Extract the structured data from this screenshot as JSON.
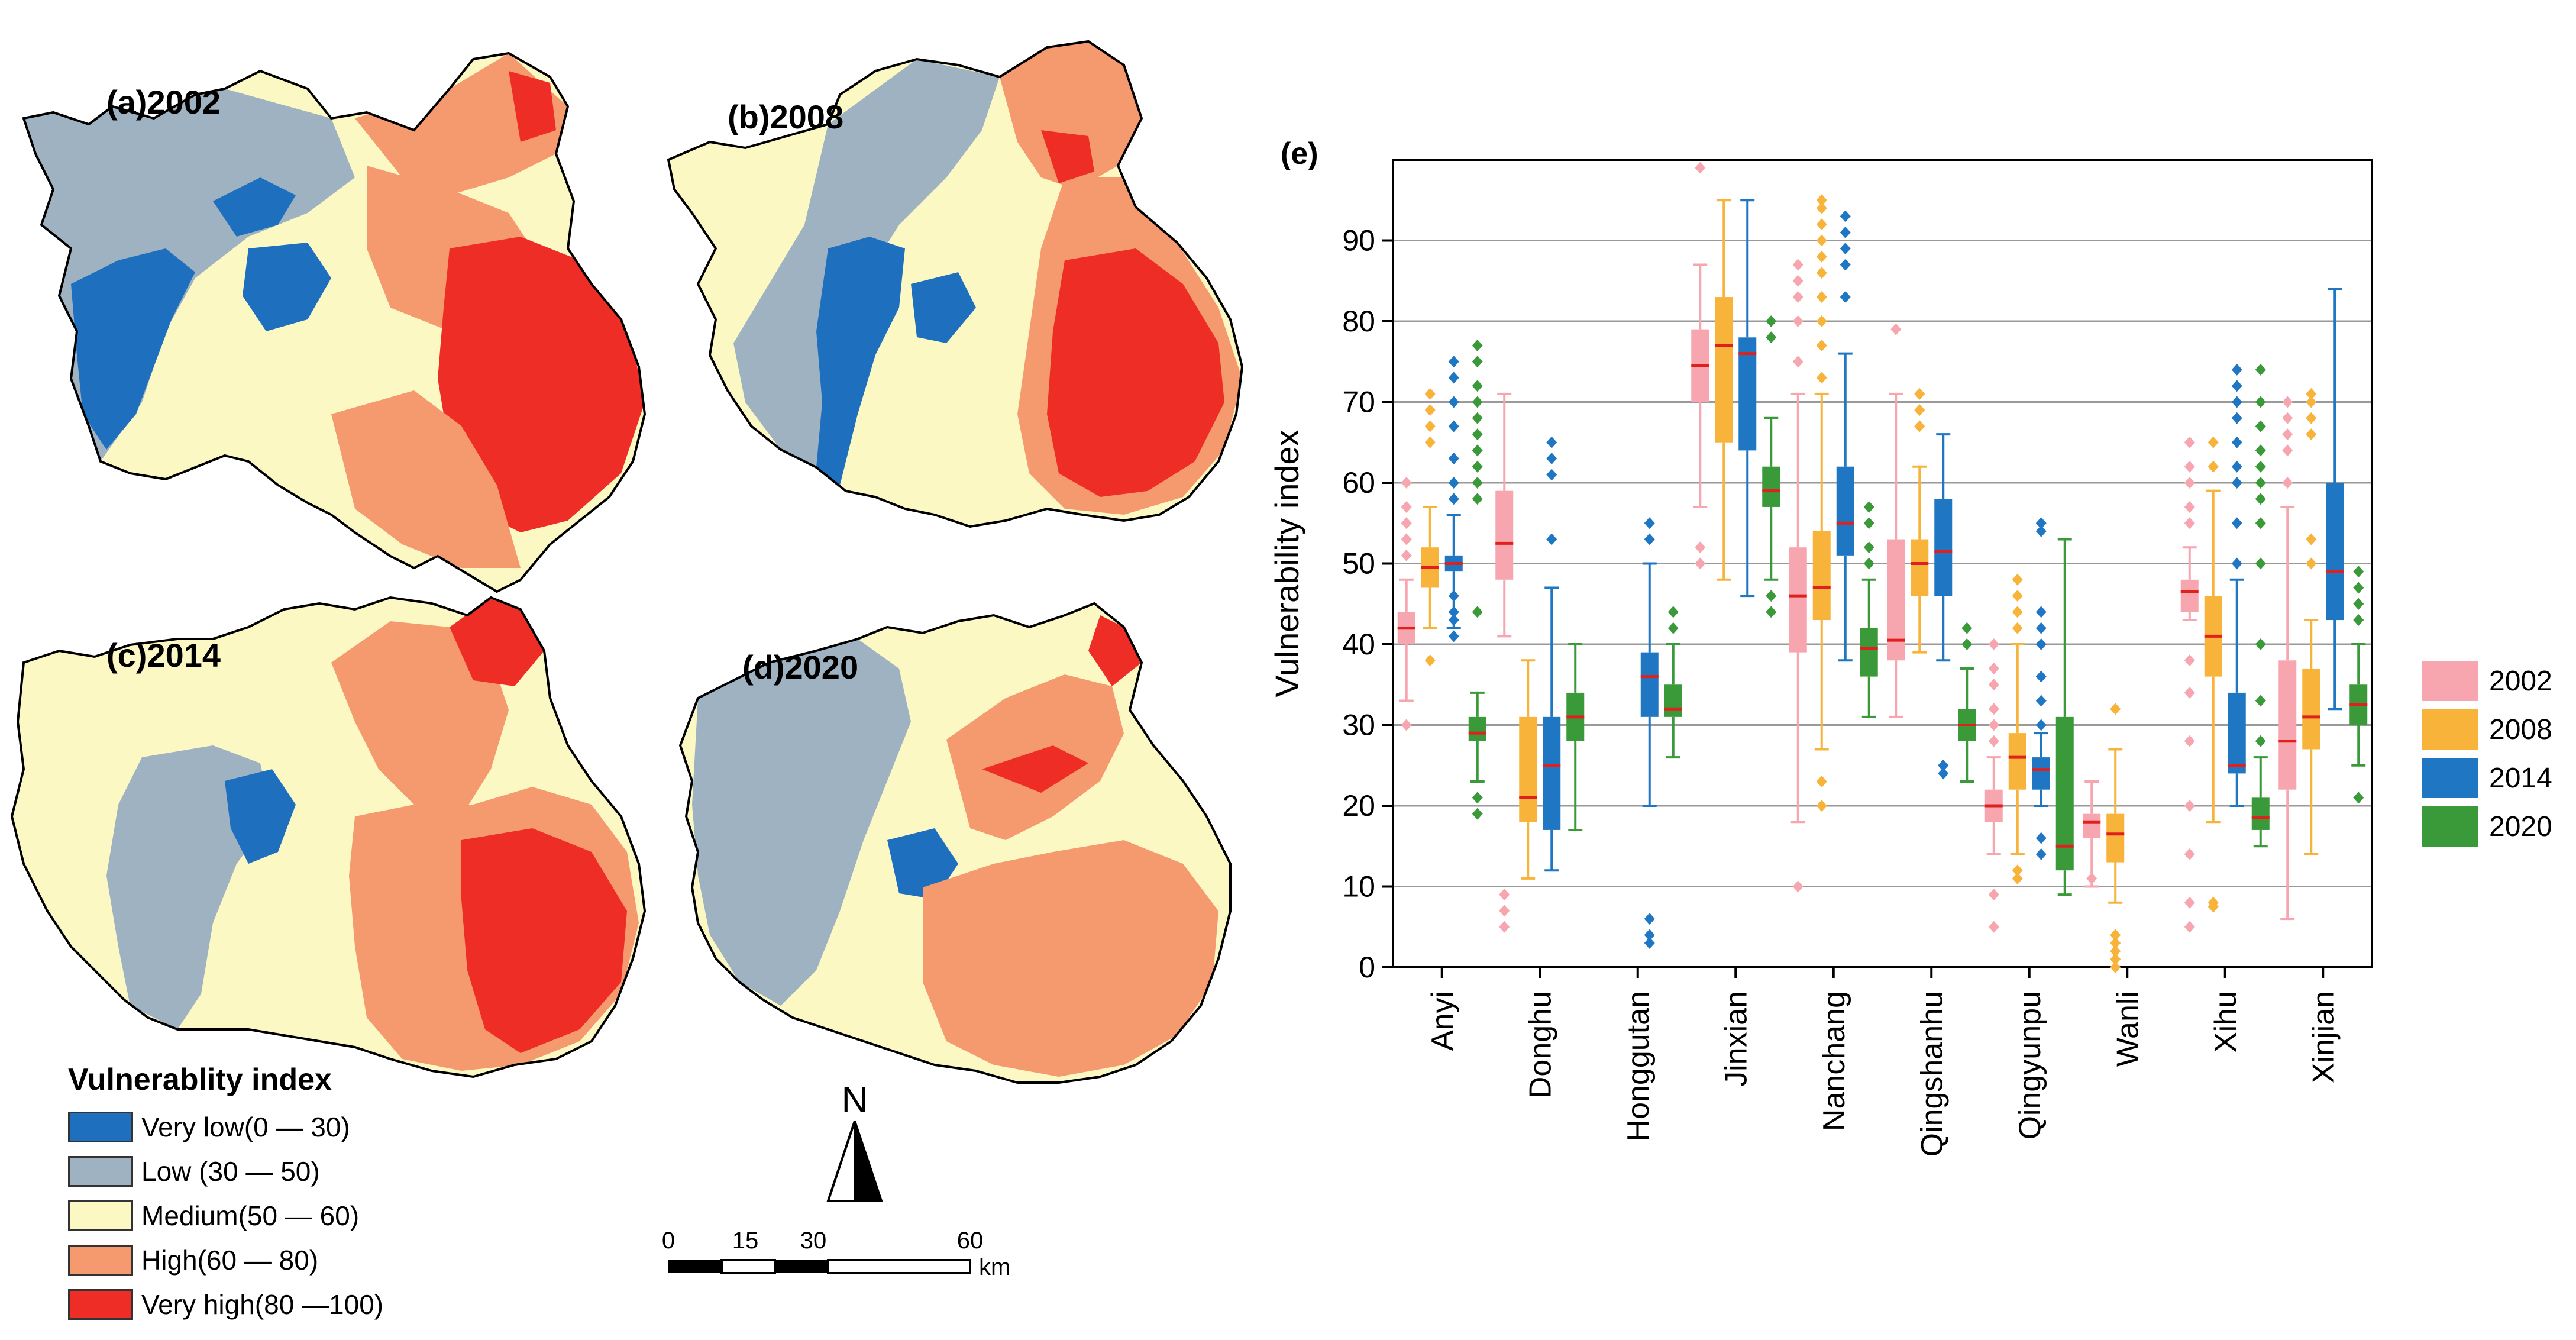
{
  "maps": [
    {
      "label": "(a)2002"
    },
    {
      "label": "(b)2008"
    },
    {
      "label": "(c)2014"
    },
    {
      "label": "(d)2020"
    }
  ],
  "legend": {
    "title": "Vulnerablity index",
    "items": [
      {
        "label": "Very low(0 — 30)",
        "color": "#1f6fbf"
      },
      {
        "label": "Low (30 — 50)",
        "color": "#9fb2c2"
      },
      {
        "label": "Medium(50 — 60)",
        "color": "#fcf8c4"
      },
      {
        "label": "High(60 — 80)",
        "color": "#f59a6e"
      },
      {
        "label": "Very high(80 —100)",
        "color": "#ee2d27"
      }
    ]
  },
  "north_arrow": {
    "label": "N"
  },
  "scale_bar": {
    "ticks": [
      "0",
      "15",
      "30",
      "60"
    ],
    "unit": "km"
  },
  "chart_data": {
    "type": "box",
    "panel_label": "(e)",
    "ylabel": "Vulnerability index",
    "ylim": [
      0,
      100
    ],
    "yticks": [
      0,
      10,
      20,
      30,
      40,
      50,
      60,
      70,
      80,
      90
    ],
    "grid": true,
    "legend_position": "right",
    "categories": [
      "Anyi",
      "Donghu",
      "Honggutan",
      "Jinxian",
      "Nanchang",
      "Qingshanhu",
      "Qingyunpu",
      "Wanli",
      "Xihu",
      "Xinjian"
    ],
    "series": [
      {
        "name": "2002",
        "color": "#f7a6b0",
        "boxes": [
          {
            "whislo": 33,
            "q1": 40,
            "med": 42,
            "q3": 44,
            "whishi": 48,
            "fliers": [
              30,
              51,
              53,
              55,
              57,
              60
            ]
          },
          {
            "whislo": 41,
            "q1": 48,
            "med": 52.5,
            "q3": 59,
            "whishi": 71,
            "fliers": [
              5,
              7,
              9
            ]
          },
          null,
          {
            "whislo": 57,
            "q1": 70,
            "med": 74.5,
            "q3": 79,
            "whishi": 87,
            "fliers": [
              50,
              52,
              99
            ]
          },
          {
            "whislo": 18,
            "q1": 39,
            "med": 46,
            "q3": 52,
            "whishi": 71,
            "fliers": [
              10,
              75,
              80,
              83,
              85,
              87
            ]
          },
          {
            "whislo": 31,
            "q1": 38,
            "med": 40.5,
            "q3": 53,
            "whishi": 71,
            "fliers": [
              79
            ]
          },
          {
            "whislo": 14,
            "q1": 18,
            "med": 20,
            "q3": 22,
            "whishi": 26,
            "fliers": [
              5,
              9,
              28,
              30,
              32,
              35,
              37,
              40
            ]
          },
          {
            "whislo": 10,
            "q1": 16,
            "med": 18,
            "q3": 19,
            "whishi": 23,
            "fliers": [
              11
            ]
          },
          {
            "whislo": 43,
            "q1": 44,
            "med": 46.5,
            "q3": 48,
            "whishi": 52,
            "fliers": [
              5,
              8,
              14,
              20,
              28,
              34,
              38,
              55,
              57,
              60,
              62,
              65
            ]
          },
          {
            "whislo": 6,
            "q1": 22,
            "med": 28,
            "q3": 38,
            "whishi": 57,
            "fliers": [
              60,
              64,
              66,
              68,
              70
            ]
          }
        ]
      },
      {
        "name": "2008",
        "color": "#f8b33a",
        "boxes": [
          {
            "whislo": 42,
            "q1": 47,
            "med": 49.5,
            "q3": 52,
            "whishi": 57,
            "fliers": [
              38,
              65,
              67,
              69,
              71
            ]
          },
          {
            "whislo": 11,
            "q1": 18,
            "med": 21,
            "q3": 31,
            "whishi": 38,
            "fliers": []
          },
          null,
          {
            "whislo": 48,
            "q1": 65,
            "med": 77,
            "q3": 83,
            "whishi": 95,
            "fliers": []
          },
          {
            "whislo": 27,
            "q1": 43,
            "med": 47,
            "q3": 54,
            "whishi": 71,
            "fliers": [
              20,
              23,
              73,
              77,
              80,
              83,
              86,
              88,
              90,
              92,
              94,
              95
            ]
          },
          {
            "whislo": 39,
            "q1": 46,
            "med": 50,
            "q3": 53,
            "whishi": 62,
            "fliers": [
              67,
              69,
              71
            ]
          },
          {
            "whislo": 14,
            "q1": 22,
            "med": 26,
            "q3": 29,
            "whishi": 40,
            "fliers": [
              11,
              12,
              42,
              44,
              46,
              48
            ]
          },
          {
            "whislo": 8,
            "q1": 13,
            "med": 16.5,
            "q3": 19,
            "whishi": 27,
            "fliers": [
              0,
              1,
              2,
              3,
              4,
              32
            ]
          },
          {
            "whislo": 18,
            "q1": 36,
            "med": 41,
            "q3": 46,
            "whishi": 59,
            "fliers": [
              7.5,
              8,
              62,
              65
            ]
          },
          {
            "whislo": 14,
            "q1": 27,
            "med": 31,
            "q3": 37,
            "whishi": 43,
            "fliers": [
              50,
              53,
              66,
              68,
              70,
              71
            ]
          }
        ]
      },
      {
        "name": "2014",
        "color": "#1f77c4",
        "boxes": [
          {
            "whislo": 42,
            "q1": 49,
            "med": 50,
            "q3": 51,
            "whishi": 56,
            "fliers": [
              41,
              43,
              44,
              46,
              58,
              60,
              63,
              67,
              70,
              73,
              75
            ]
          },
          {
            "whislo": 12,
            "q1": 17,
            "med": 25,
            "q3": 31,
            "whishi": 47,
            "fliers": [
              53,
              61,
              63,
              65
            ]
          },
          {
            "whislo": 20,
            "q1": 31,
            "med": 36,
            "q3": 39,
            "whishi": 50,
            "fliers": [
              3,
              4,
              6,
              53,
              55
            ]
          },
          {
            "whislo": 46,
            "q1": 64,
            "med": 76,
            "q3": 78,
            "whishi": 95,
            "fliers": []
          },
          {
            "whislo": 38,
            "q1": 51,
            "med": 55,
            "q3": 62,
            "whishi": 76,
            "fliers": [
              83,
              87,
              89,
              91,
              93
            ]
          },
          {
            "whislo": 38,
            "q1": 46,
            "med": 51.5,
            "q3": 58,
            "whishi": 66,
            "fliers": [
              24,
              25
            ]
          },
          {
            "whislo": 20,
            "q1": 22,
            "med": 24.5,
            "q3": 26,
            "whishi": 29,
            "fliers": [
              14,
              16,
              30,
              33,
              36,
              40,
              42,
              44,
              54,
              55
            ]
          },
          null,
          {
            "whislo": 20,
            "q1": 24,
            "med": 25,
            "q3": 34,
            "whishi": 48,
            "fliers": [
              50,
              55,
              60,
              62,
              65,
              68,
              70,
              72,
              74
            ]
          },
          {
            "whislo": 32,
            "q1": 43,
            "med": 49,
            "q3": 60,
            "whishi": 84,
            "fliers": []
          }
        ]
      },
      {
        "name": "2020",
        "color": "#3a9a3a",
        "boxes": [
          {
            "whislo": 23,
            "q1": 28,
            "med": 29,
            "q3": 31,
            "whishi": 34,
            "fliers": [
              19,
              21,
              44,
              58,
              60,
              62,
              64,
              66,
              68,
              70,
              72,
              75,
              77
            ]
          },
          {
            "whislo": 17,
            "q1": 28,
            "med": 31,
            "q3": 34,
            "whishi": 40,
            "fliers": []
          },
          {
            "whislo": 26,
            "q1": 31,
            "med": 32,
            "q3": 35,
            "whishi": 40,
            "fliers": [
              42,
              44
            ]
          },
          {
            "whislo": 48,
            "q1": 57,
            "med": 59,
            "q3": 62,
            "whishi": 68,
            "fliers": [
              44,
              46,
              78,
              80
            ]
          },
          {
            "whislo": 31,
            "q1": 36,
            "med": 39.5,
            "q3": 42,
            "whishi": 48,
            "fliers": [
              50,
              52,
              55,
              57
            ]
          },
          {
            "whislo": 23,
            "q1": 28,
            "med": 30,
            "q3": 32,
            "whishi": 37,
            "fliers": [
              40,
              42
            ]
          },
          {
            "whislo": 9,
            "q1": 12,
            "med": 15,
            "q3": 31,
            "whishi": 53,
            "fliers": []
          },
          null,
          {
            "whislo": 15,
            "q1": 17,
            "med": 18.5,
            "q3": 21,
            "whishi": 26,
            "fliers": [
              28,
              33,
              40,
              50,
              55,
              58,
              60,
              62,
              64,
              67,
              70,
              74
            ]
          },
          {
            "whislo": 25,
            "q1": 30,
            "med": 32.5,
            "q3": 35,
            "whishi": 40,
            "fliers": [
              21,
              43,
              45,
              47,
              49
            ]
          }
        ]
      }
    ]
  }
}
